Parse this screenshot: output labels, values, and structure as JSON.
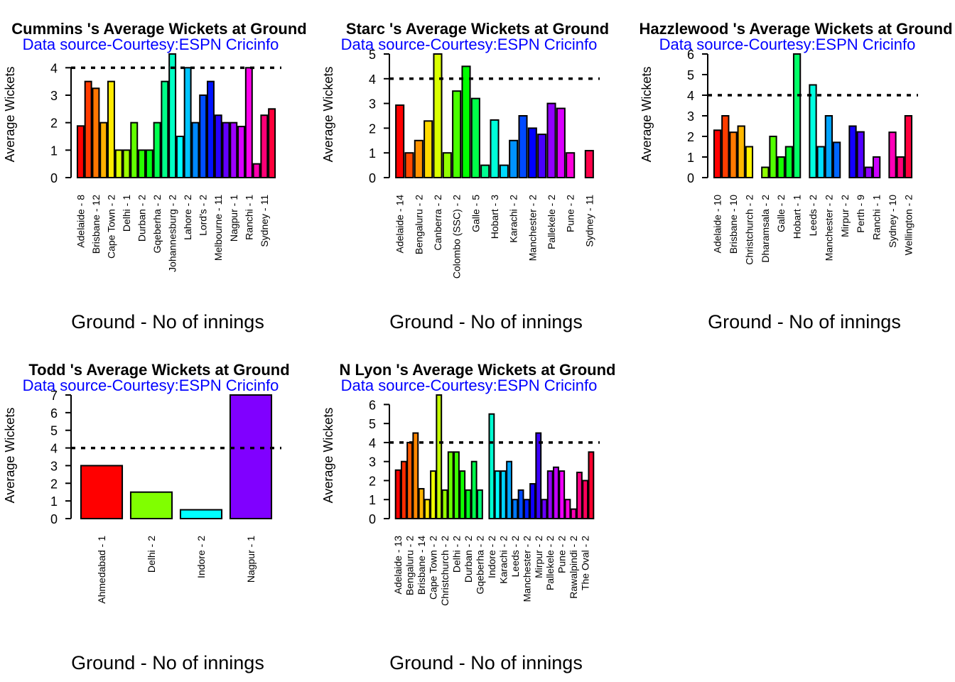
{
  "chart_data": [
    {
      "type": "bar",
      "title": "Cummins 's Average Wickets at Ground",
      "subtitle": "Data source-Courtesy:ESPN Cricinfo",
      "xlabel": "Ground - No of innings",
      "ylabel": "Average Wickets",
      "yticks": [
        0,
        1,
        2,
        3,
        4
      ],
      "ylim": [
        0,
        4.5
      ],
      "reference_line": 4,
      "categories": [
        "Adelaide - 8",
        "",
        "Brisbane - 12",
        "",
        "Cape Town - 2",
        "",
        "Delhi - 1",
        "",
        "Durban - 2",
        "",
        "Gqeberha - 2",
        "",
        "Johannesburg - 2",
        "",
        "Lahore - 2",
        "",
        "Lord's - 2",
        "",
        "Melbourne - 11",
        "",
        "Nagpur - 1",
        "",
        "Ranchi - 1",
        "",
        "Sydney - 11",
        ""
      ],
      "values": [
        1.88,
        3.5,
        3.25,
        2.0,
        3.5,
        1.0,
        1.0,
        2.0,
        1.0,
        1.0,
        2.0,
        3.5,
        4.5,
        1.5,
        4.0,
        2.0,
        3.0,
        3.5,
        2.27,
        2.0,
        2.0,
        1.86,
        4.0,
        0.5,
        2.27,
        2.5
      ],
      "label_every": 2
    },
    {
      "type": "bar",
      "title": "Starc 's Average Wickets at Ground",
      "subtitle": "Data source-Courtesy:ESPN Cricinfo",
      "xlabel": "Ground - No of innings",
      "ylabel": "Average Wickets",
      "yticks": [
        0,
        1,
        2,
        3,
        4,
        5
      ],
      "ylim": [
        0,
        5
      ],
      "reference_line": 4,
      "categories": [
        "Adelaide - 14",
        "",
        "Bengaluru - 2",
        "",
        "Canberra - 2",
        "",
        "Colombo (SSC) - 2",
        "",
        "Galle - 5",
        "",
        "Hobart - 3",
        "",
        "Karachi - 2",
        "",
        "Manchester - 2",
        "",
        "Pallekele - 2",
        "",
        "Pune - 2",
        "",
        "Sydney - 11"
      ],
      "values": [
        2.93,
        1.0,
        1.5,
        2.29,
        5.0,
        1.0,
        3.5,
        4.5,
        3.2,
        0.5,
        2.33,
        0.5,
        1.5,
        2.5,
        2.0,
        1.75,
        3.0,
        2.8,
        1.0,
        0,
        1.09
      ],
      "label_every": 2
    },
    {
      "type": "bar",
      "title": "Hazzlewood 's Average Wickets at Ground",
      "subtitle": "Data source-Courtesy:ESPN Cricinfo",
      "xlabel": "Ground - No of innings",
      "ylabel": "Average Wickets",
      "yticks": [
        0,
        1,
        2,
        3,
        4,
        5,
        6
      ],
      "ylim": [
        0,
        6
      ],
      "reference_line": 4,
      "categories": [
        "Adelaide - 10",
        "",
        "Brisbane - 10",
        "",
        "Christchurch - 2",
        "",
        "Dharamsala - 2",
        "",
        "Galle - 2",
        "",
        "Hobart - 1",
        "",
        "Leeds - 2",
        "",
        "Manchester - 2",
        "",
        "Mirpur - 2",
        "",
        "Perth - 9",
        "",
        "Ranchi - 1",
        "",
        "Sydney - 10",
        "",
        "Wellington - 2"
      ],
      "values": [
        2.3,
        3.0,
        2.2,
        2.5,
        1.5,
        0,
        0.5,
        2.0,
        1.0,
        1.5,
        6.0,
        0,
        4.5,
        1.5,
        3.0,
        1.71,
        0,
        2.5,
        2.22,
        0.5,
        1.0,
        0,
        2.2,
        1.0,
        3.0
      ],
      "label_every": 2
    },
    {
      "type": "bar",
      "title": "Todd 's Average Wickets at Ground",
      "subtitle": "Data source-Courtesy:ESPN Cricinfo",
      "xlabel": "Ground - No of innings",
      "ylabel": "Average Wickets",
      "yticks": [
        0,
        1,
        2,
        3,
        4,
        5,
        6,
        7
      ],
      "ylim": [
        0,
        7
      ],
      "reference_line": 4,
      "categories": [
        "Ahmedabad - 1",
        "Delhi - 2",
        "Indore - 2",
        "Nagpur - 1"
      ],
      "values": [
        3.0,
        1.5,
        0.5,
        7.0
      ],
      "label_every": 1
    },
    {
      "type": "bar",
      "title": "N Lyon 's Average Wickets at Ground",
      "subtitle": "Data source-Courtesy:ESPN Cricinfo",
      "xlabel": "Ground - No of innings",
      "ylabel": "Average Wickets",
      "yticks": [
        0,
        1,
        2,
        3,
        4,
        5,
        6
      ],
      "ylim": [
        0,
        6.5
      ],
      "reference_line": 4,
      "categories": [
        "Adelaide - 13",
        "",
        "Bengaluru - 2",
        "",
        "Brisbane - 14",
        "",
        "Cape Town - 2",
        "",
        "Christchurch - 2",
        "",
        "Delhi - 2",
        "",
        "Durban - 2",
        "",
        "Gqeberha - 2",
        "",
        "Indore - 2",
        "",
        "Karachi - 2",
        "",
        "Leeds - 2",
        "",
        "Manchester - 2",
        "",
        "Mirpur - 2",
        "",
        "Pallekele - 2",
        "",
        "Pune - 2",
        "",
        "Rawalpindi - 2",
        "",
        "The Oval - 2",
        ""
      ],
      "values": [
        2.55,
        3.0,
        4.0,
        4.5,
        1.57,
        1.0,
        2.5,
        6.5,
        1.5,
        3.5,
        3.5,
        2.5,
        1.5,
        3.0,
        1.5,
        0,
        5.5,
        2.5,
        2.5,
        3.0,
        1.0,
        1.5,
        1.0,
        1.83,
        4.5,
        1.0,
        2.5,
        2.7,
        2.5,
        1.0,
        0.5,
        2.43,
        2.0,
        3.5
      ],
      "label_every": 2
    }
  ]
}
